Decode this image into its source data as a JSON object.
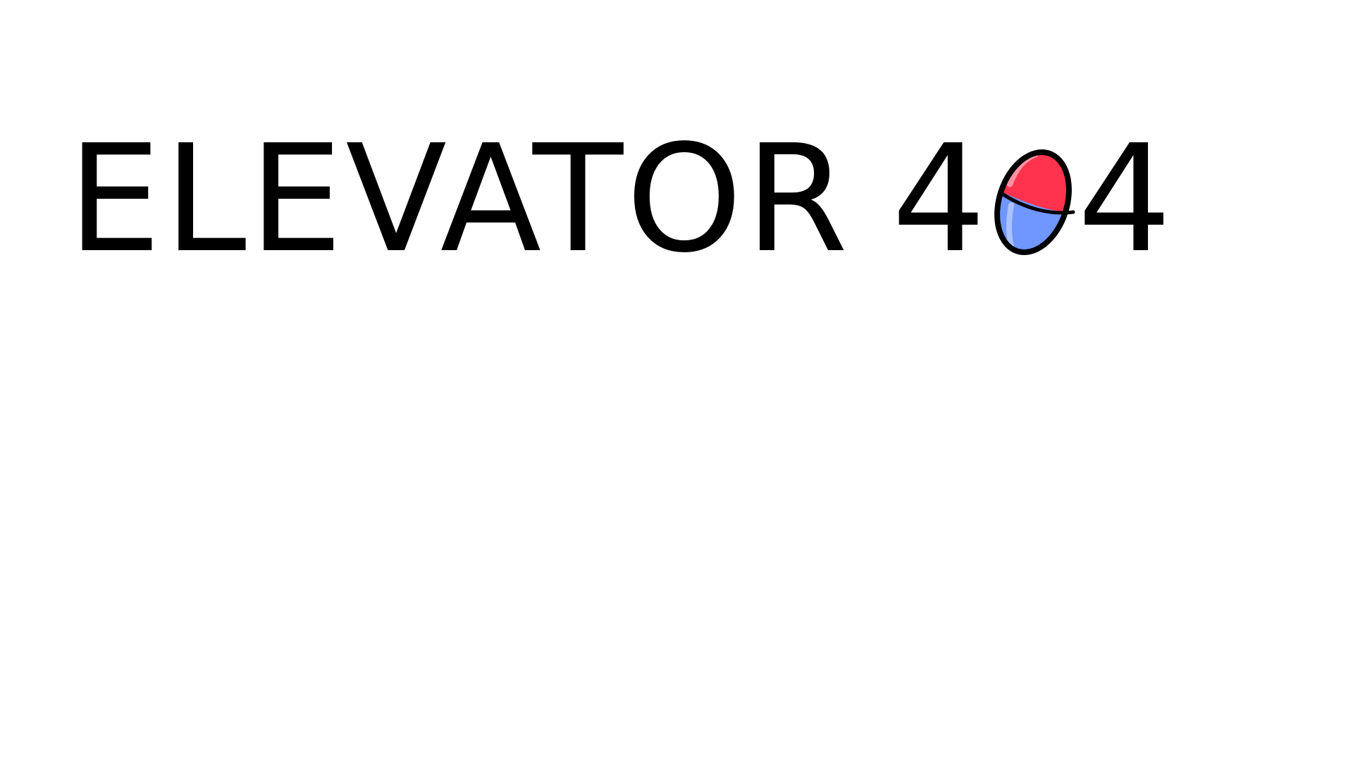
{
  "title": {
    "word": "ELEVATOR",
    "number_first": "4",
    "number_last": "4",
    "o_icon": "red-blue-capsule-o-icon"
  },
  "colors": {
    "text": "#000000",
    "background": "#ffffff",
    "capsule_top": "#ff334d",
    "capsule_bottom": "#7096ff",
    "outline": "#000000"
  }
}
